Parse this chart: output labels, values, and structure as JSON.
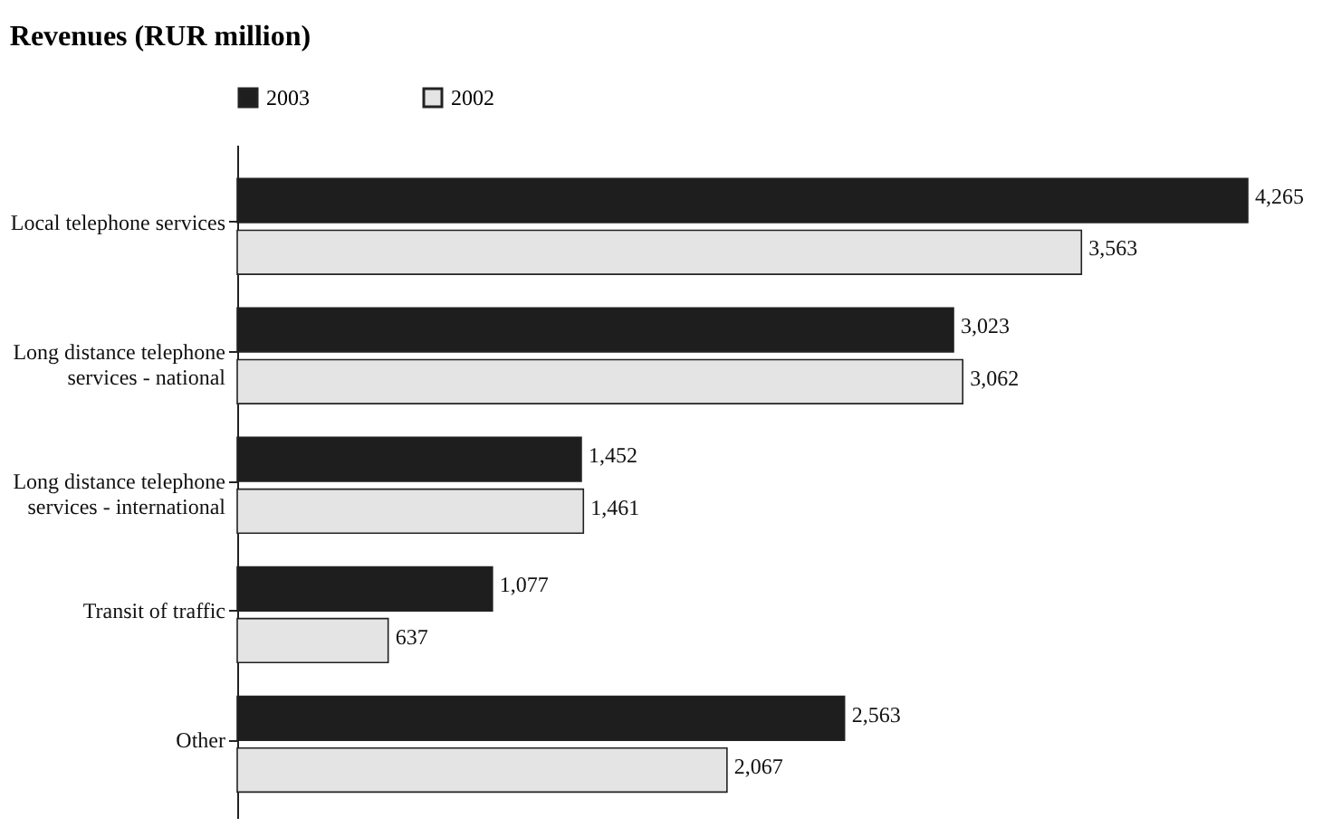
{
  "chart_data": {
    "type": "bar",
    "orientation": "horizontal",
    "title": "Revenues (RUR million)",
    "categories": [
      "Local telephone services",
      "Long distance telephone services - national",
      "Long distance telephone services - international",
      "Transit of traffic",
      "Other"
    ],
    "series": [
      {
        "name": "2003",
        "color": "#1e1e1e",
        "values": [
          4265,
          3023,
          1452,
          1077,
          2563
        ],
        "value_labels": [
          "4,265",
          "3,023",
          "1,452",
          "1,077",
          "2,563"
        ]
      },
      {
        "name": "2002",
        "color": "#e4e4e4",
        "values": [
          3563,
          3062,
          1461,
          637,
          2067
        ],
        "value_labels": [
          "3,563",
          "3,062",
          "1,461",
          "637",
          "2,067"
        ]
      }
    ],
    "xlim": [
      0,
      4265
    ],
    "legend": "top",
    "tick_labels": "y"
  }
}
